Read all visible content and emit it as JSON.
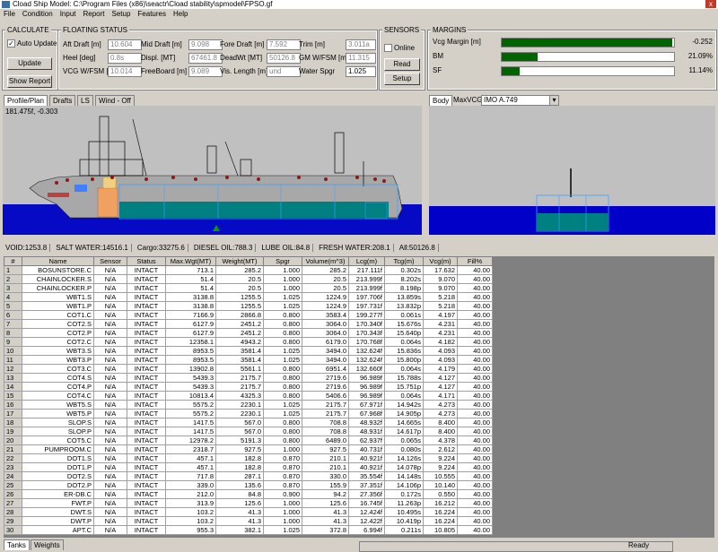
{
  "window": {
    "title": "Cload  Ship Model: C:\\Program Files (x86)\\seactr\\Cload stability\\spmodel\\FPSO.gf",
    "menu": [
      "File",
      "Condition",
      "Input",
      "Report",
      "Setup",
      "Features",
      "Help"
    ]
  },
  "calculate": {
    "title": "CALCULATE",
    "auto_update": "Auto Update",
    "update": "Update",
    "show_report": "Show Report"
  },
  "floating_status": {
    "title": "FLOATING STATUS",
    "fields": [
      {
        "label": "Aft Draft [m]",
        "value": "10.604"
      },
      {
        "label": "Mid Draft [m]",
        "value": "9.098"
      },
      {
        "label": "Fore Draft [m]",
        "value": "7.592"
      },
      {
        "label": "Trim [m]",
        "value": "3.011a"
      },
      {
        "label": "Heel [deg]",
        "value": "0.8s"
      },
      {
        "label": "Displ. [MT]",
        "value": "67461.8"
      },
      {
        "label": "DeadWt [MT]",
        "value": "50126.8"
      },
      {
        "label": "GM W/FSM [m]",
        "value": "11.315"
      },
      {
        "label": "VCG W/FSM [m]",
        "value": "10.014"
      },
      {
        "label": "FreeBoard [m]",
        "value": "9.089"
      },
      {
        "label": "Vis. Length [m]",
        "value": "und"
      },
      {
        "label": "Water Spgr",
        "value": "1.025"
      }
    ]
  },
  "sensors": {
    "title": "SENSORS",
    "online": "Online",
    "read": "Read",
    "setup": "Setup"
  },
  "margins": {
    "title": "MARGINS",
    "items": [
      {
        "label": "Vcg Margin [m]",
        "value": "-0.252"
      },
      {
        "label": "BM",
        "value": "21.09%"
      },
      {
        "label": "SF",
        "value": "11.14%"
      }
    ]
  },
  "view_tabs": [
    "Profile/Plan",
    "Drafts",
    "LS",
    "Wind - Off"
  ],
  "body_tab": "Body",
  "maxvcg": "MaxVCG",
  "criteria": "IMO A.749",
  "cursor_coords": "181.475f, -0.303",
  "summary": [
    "VOID:1253.8",
    "SALT WATER:14516.1",
    "Cargo:33275.6",
    "DIESEL OIL:788.3",
    "LUBE OIL:84.8",
    "FRESH WATER:208.1",
    "All:50126.8"
  ],
  "table": {
    "columns": [
      "#",
      "Name",
      "Sensor",
      "Status",
      "Max.Wgt(MT)",
      "Weight(MT)",
      "Spgr",
      "Volume(m^3)",
      "Lcg(m)",
      "Tcg(m)",
      "Vcg(m)",
      "Fill%"
    ],
    "rows": [
      [
        "1",
        "BOSUNSTORE.C",
        "N/A",
        "INTACT",
        "713.1",
        "285.2",
        "1.000",
        "285.2",
        "217.111f",
        "0.302s",
        "17.632",
        "40.00"
      ],
      [
        "2",
        "CHAINLOCKER.S",
        "N/A",
        "INTACT",
        "51.4",
        "20.5",
        "1.000",
        "20.5",
        "213.999f",
        "8.202s",
        "9.070",
        "40.00"
      ],
      [
        "3",
        "CHAINLOCKER.P",
        "N/A",
        "INTACT",
        "51.4",
        "20.5",
        "1.000",
        "20.5",
        "213.999f",
        "8.198p",
        "9.070",
        "40.00"
      ],
      [
        "4",
        "WBT1.S",
        "N/A",
        "INTACT",
        "3138.8",
        "1255.5",
        "1.025",
        "1224.9",
        "197.706f",
        "13.859s",
        "5.218",
        "40.00"
      ],
      [
        "5",
        "WBT1.P",
        "N/A",
        "INTACT",
        "3138.8",
        "1255.5",
        "1.025",
        "1224.9",
        "197.731f",
        "13.832p",
        "5.218",
        "40.00"
      ],
      [
        "6",
        "COT1.C",
        "N/A",
        "INTACT",
        "7166.9",
        "2866.8",
        "0.800",
        "3583.4",
        "199.277f",
        "0.061s",
        "4.197",
        "40.00"
      ],
      [
        "7",
        "COT2.S",
        "N/A",
        "INTACT",
        "6127.9",
        "2451.2",
        "0.800",
        "3064.0",
        "170.340f",
        "15.676s",
        "4.231",
        "40.00"
      ],
      [
        "8",
        "COT2.P",
        "N/A",
        "INTACT",
        "6127.9",
        "2451.2",
        "0.800",
        "3064.0",
        "170.343f",
        "15.640p",
        "4.231",
        "40.00"
      ],
      [
        "9",
        "COT2.C",
        "N/A",
        "INTACT",
        "12358.1",
        "4943.2",
        "0.800",
        "6179.0",
        "170.768f",
        "0.064s",
        "4.182",
        "40.00"
      ],
      [
        "10",
        "WBT3.S",
        "N/A",
        "INTACT",
        "8953.5",
        "3581.4",
        "1.025",
        "3494.0",
        "132.624f",
        "15.836s",
        "4.093",
        "40.00"
      ],
      [
        "11",
        "WBT3.P",
        "N/A",
        "INTACT",
        "8953.5",
        "3581.4",
        "1.025",
        "3494.0",
        "132.624f",
        "15.800p",
        "4.093",
        "40.00"
      ],
      [
        "12",
        "COT3.C",
        "N/A",
        "INTACT",
        "13902.8",
        "5561.1",
        "0.800",
        "6951.4",
        "132.660f",
        "0.064s",
        "4.179",
        "40.00"
      ],
      [
        "13",
        "COT4.S",
        "N/A",
        "INTACT",
        "5439.3",
        "2175.7",
        "0.800",
        "2719.6",
        "96.989f",
        "15.788s",
        "4.127",
        "40.00"
      ],
      [
        "14",
        "COT4.P",
        "N/A",
        "INTACT",
        "5439.3",
        "2175.7",
        "0.800",
        "2719.6",
        "96.989f",
        "15.751p",
        "4.127",
        "40.00"
      ],
      [
        "15",
        "COT4.C",
        "N/A",
        "INTACT",
        "10813.4",
        "4325.3",
        "0.800",
        "5406.6",
        "96.989f",
        "0.064s",
        "4.171",
        "40.00"
      ],
      [
        "16",
        "WBT5.S",
        "N/A",
        "INTACT",
        "5575.2",
        "2230.1",
        "1.025",
        "2175.7",
        "67.971f",
        "14.942s",
        "4.273",
        "40.00"
      ],
      [
        "17",
        "WBT5.P",
        "N/A",
        "INTACT",
        "5575.2",
        "2230.1",
        "1.025",
        "2175.7",
        "67.968f",
        "14.905p",
        "4.273",
        "40.00"
      ],
      [
        "18",
        "SLOP.S",
        "N/A",
        "INTACT",
        "1417.5",
        "567.0",
        "0.800",
        "708.8",
        "48.932f",
        "14.665s",
        "8.400",
        "40.00"
      ],
      [
        "19",
        "SLOP.P",
        "N/A",
        "INTACT",
        "1417.5",
        "567.0",
        "0.800",
        "708.8",
        "48.931f",
        "14.617p",
        "8.400",
        "40.00"
      ],
      [
        "20",
        "COT5.C",
        "N/A",
        "INTACT",
        "12978.2",
        "5191.3",
        "0.800",
        "6489.0",
        "62.937f",
        "0.065s",
        "4.378",
        "40.00"
      ],
      [
        "21",
        "PUMPROOM.C",
        "N/A",
        "INTACT",
        "2318.7",
        "927.5",
        "1.000",
        "927.5",
        "40.731f",
        "0.080s",
        "2.612",
        "40.00"
      ],
      [
        "22",
        "DOT1.S",
        "N/A",
        "INTACT",
        "457.1",
        "182.8",
        "0.870",
        "210.1",
        "40.921f",
        "14.126s",
        "9.224",
        "40.00"
      ],
      [
        "23",
        "DOT1.P",
        "N/A",
        "INTACT",
        "457.1",
        "182.8",
        "0.870",
        "210.1",
        "40.921f",
        "14.078p",
        "9.224",
        "40.00"
      ],
      [
        "24",
        "DOT2.S",
        "N/A",
        "INTACT",
        "717.8",
        "287.1",
        "0.870",
        "330.0",
        "35.554f",
        "14.148s",
        "10.555",
        "40.00"
      ],
      [
        "25",
        "DOT2.P",
        "N/A",
        "INTACT",
        "339.0",
        "135.6",
        "0.870",
        "155.9",
        "37.351f",
        "14.106p",
        "10.140",
        "40.00"
      ],
      [
        "26",
        "ER-DB.C",
        "N/A",
        "INTACT",
        "212.0",
        "84.8",
        "0.900",
        "94.2",
        "27.356f",
        "0.172s",
        "0.550",
        "40.00"
      ],
      [
        "27",
        "FWT.P",
        "N/A",
        "INTACT",
        "313.9",
        "125.6",
        "1.000",
        "125.6",
        "16.745f",
        "11.263p",
        "16.212",
        "40.00"
      ],
      [
        "28",
        "DWT.S",
        "N/A",
        "INTACT",
        "103.2",
        "41.3",
        "1.000",
        "41.3",
        "12.424f",
        "10.495s",
        "16.224",
        "40.00"
      ],
      [
        "29",
        "DWT.P",
        "N/A",
        "INTACT",
        "103.2",
        "41.3",
        "1.000",
        "41.3",
        "12.422f",
        "10.419p",
        "16.224",
        "40.00"
      ],
      [
        "30",
        "APT.C",
        "N/A",
        "INTACT",
        "955.3",
        "382.1",
        "1.025",
        "372.8",
        "6.994f",
        "0.211s",
        "10.805",
        "40.00"
      ]
    ]
  },
  "bottom_tabs": [
    "Tanks",
    "Weights"
  ],
  "status": "Ready"
}
